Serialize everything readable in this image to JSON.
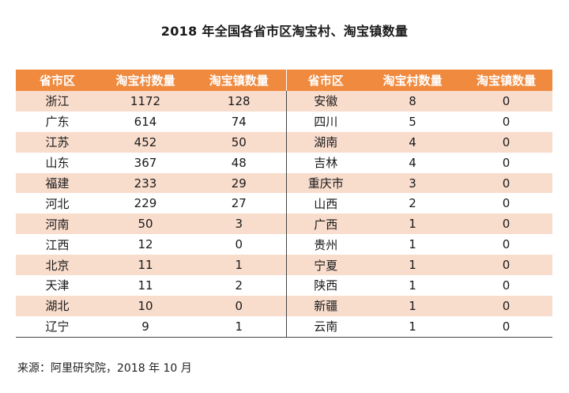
{
  "title": "2018 年全国各省市区淘宝村、淘宝镇数量",
  "headers": {
    "left_region": "省市区",
    "left_villages": "淘宝村数量",
    "left_towns": "淘宝镇数量",
    "right_region": "省市区",
    "right_villages": "淘宝村数量",
    "right_towns": "淘宝镇数量"
  },
  "rows": [
    {
      "l_name": "浙江",
      "l_villages": "1172",
      "l_towns": "128",
      "r_name": "安徽",
      "r_villages": "8",
      "r_towns": "0"
    },
    {
      "l_name": "广东",
      "l_villages": "614",
      "l_towns": "74",
      "r_name": "四川",
      "r_villages": "5",
      "r_towns": "0"
    },
    {
      "l_name": "江苏",
      "l_villages": "452",
      "l_towns": "50",
      "r_name": "湖南",
      "r_villages": "4",
      "r_towns": "0"
    },
    {
      "l_name": "山东",
      "l_villages": "367",
      "l_towns": "48",
      "r_name": "吉林",
      "r_villages": "4",
      "r_towns": "0"
    },
    {
      "l_name": "福建",
      "l_villages": "233",
      "l_towns": "29",
      "r_name": "重庆市",
      "r_villages": "3",
      "r_towns": "0"
    },
    {
      "l_name": "河北",
      "l_villages": "229",
      "l_towns": "27",
      "r_name": "山西",
      "r_villages": "2",
      "r_towns": "0"
    },
    {
      "l_name": "河南",
      "l_villages": "50",
      "l_towns": "3",
      "r_name": "广西",
      "r_villages": "1",
      "r_towns": "0"
    },
    {
      "l_name": "江西",
      "l_villages": "12",
      "l_towns": "0",
      "r_name": "贵州",
      "r_villages": "1",
      "r_towns": "0"
    },
    {
      "l_name": "北京",
      "l_villages": "11",
      "l_towns": "1",
      "r_name": "宁夏",
      "r_villages": "1",
      "r_towns": "0"
    },
    {
      "l_name": "天津",
      "l_villages": "11",
      "l_towns": "2",
      "r_name": "陕西",
      "r_villages": "1",
      "r_towns": "0"
    },
    {
      "l_name": "湖北",
      "l_villages": "10",
      "l_towns": "0",
      "r_name": "新疆",
      "r_villages": "1",
      "r_towns": "0"
    },
    {
      "l_name": "辽宁",
      "l_villages": "9",
      "l_towns": "1",
      "r_name": "云南",
      "r_villages": "1",
      "r_towns": "0"
    }
  ],
  "source": "来源：阿里研究院，2018 年 10 月",
  "colors": {
    "header_bg": "#ef8a3f",
    "stripe_bg": "#f8dccc"
  }
}
